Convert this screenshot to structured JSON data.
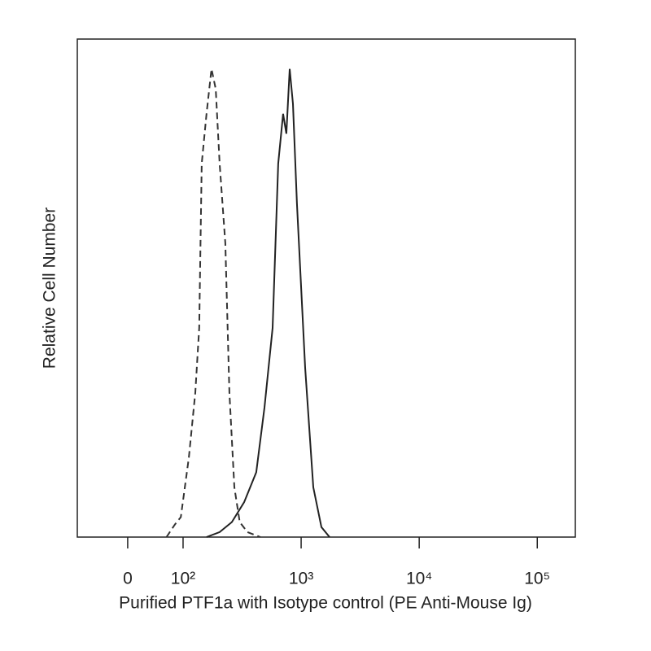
{
  "chart_data": {
    "type": "line",
    "x_label": "Purified PTF1a with Isotype control (PE Anti-Mouse Ig)",
    "y_label": "Relative Cell Number",
    "x_scale": "biexponential",
    "xlim": [
      -91,
      210000
    ],
    "xticks": [
      0,
      {
        "value": 100,
        "label": "10²"
      },
      {
        "value": 1000,
        "label": "10³"
      },
      {
        "value": 10000,
        "label": "10⁴"
      },
      {
        "value": 100000,
        "label": "10⁵"
      }
    ],
    "ylim": [
      0,
      100
    ],
    "series": [
      {
        "name": "Isotype control",
        "color": "#333333",
        "dash": true,
        "x": [
          70,
          85,
          96,
          112,
          127,
          137,
          144,
          158,
          174,
          189,
          204,
          228,
          247,
          272,
          302,
          351,
          452
        ],
        "values": [
          0,
          2.5,
          4,
          16,
          29,
          42,
          75,
          85,
          94,
          90,
          75,
          59,
          29,
          10,
          3,
          1,
          0
        ]
      },
      {
        "name": "Purified PTF1a",
        "color": "#222222",
        "dash": false,
        "x": [
          158,
          204,
          259,
          329,
          417,
          489,
          573,
          640,
          704,
          750,
          800,
          852,
          922,
          1082,
          1268,
          1486,
          1742
        ],
        "values": [
          0,
          1,
          3,
          7,
          13,
          26,
          42,
          75,
          85,
          81,
          94,
          87,
          67,
          34,
          10,
          2,
          0
        ]
      }
    ]
  }
}
